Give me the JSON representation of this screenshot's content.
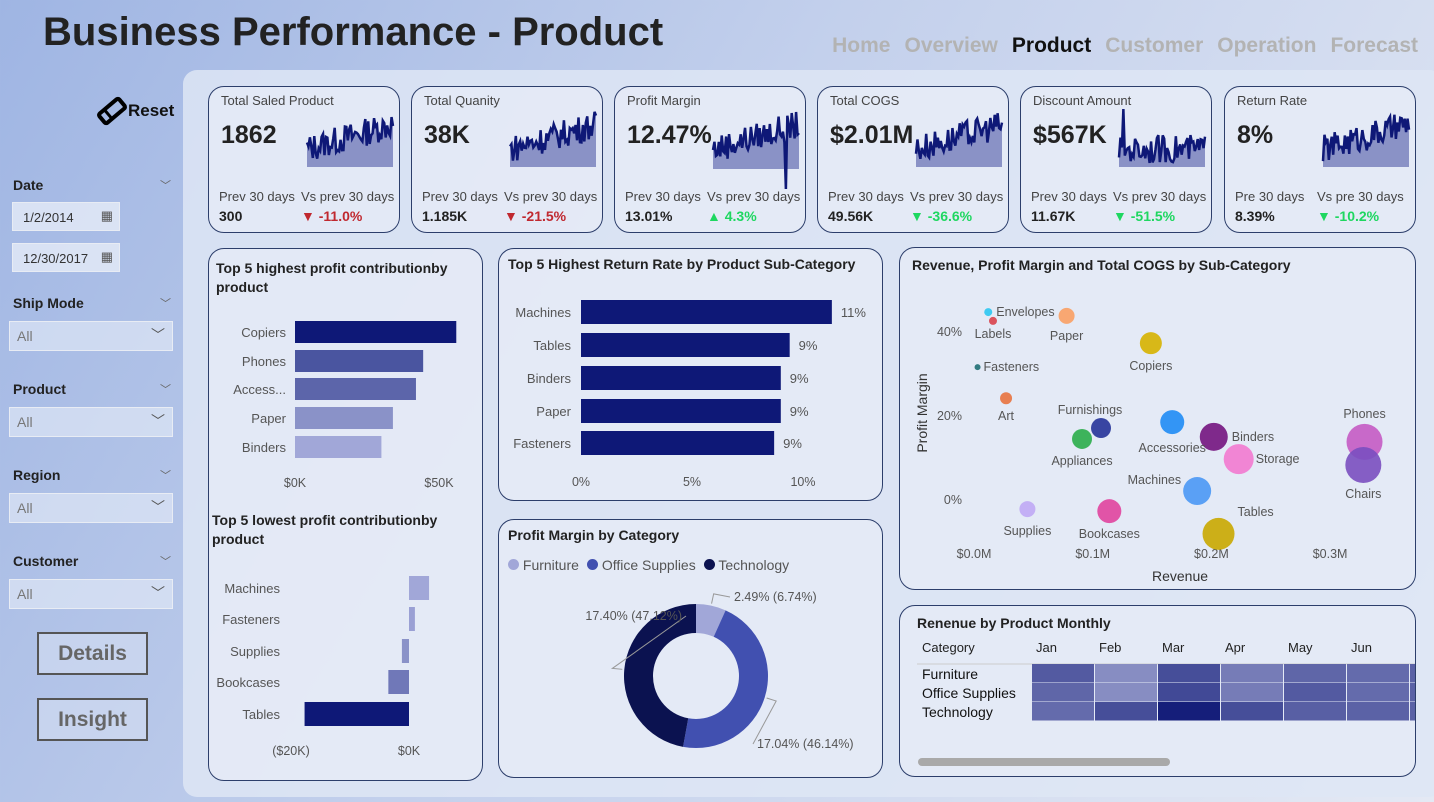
{
  "title": "Business Performance - Product",
  "nav": [
    {
      "label": "Home",
      "active": false
    },
    {
      "label": "Overview",
      "active": false
    },
    {
      "label": "Product",
      "active": true
    },
    {
      "label": "Customer",
      "active": false
    },
    {
      "label": "Operation",
      "active": false
    },
    {
      "label": "Forecast",
      "active": false
    }
  ],
  "sidebar": {
    "reset_label": "Reset",
    "date": {
      "label": "Date",
      "start": "1/2/2014",
      "end": "12/30/2017"
    },
    "filters": [
      {
        "label": "Ship Mode",
        "value": "All"
      },
      {
        "label": "Product",
        "value": "All"
      },
      {
        "label": "Region",
        "value": "All"
      },
      {
        "label": "Customer",
        "value": "All"
      }
    ],
    "details_label": "Details",
    "insight_label": "Insight"
  },
  "kpis": [
    {
      "title": "Total Saled Product",
      "value": "1862",
      "prev_label": "Prev 30 days",
      "vs_label": "Vs prev 30 days",
      "prev": "300",
      "delta": "-11.0%",
      "dir": "down",
      "color": "#c0282f"
    },
    {
      "title": "Total Quanity",
      "value": "38K",
      "prev_label": "Prev 30 days",
      "vs_label": "Vs prev 30 days",
      "prev": "1.185K",
      "delta": "-21.5%",
      "dir": "down",
      "color": "#c0282f"
    },
    {
      "title": "Profit Margin",
      "value": "12.47%",
      "prev_label": "Prev 30 days",
      "vs_label": "Vs prev 30 days",
      "prev": "13.01%",
      "delta": "4.3%",
      "dir": "up",
      "color": "#1ed760"
    },
    {
      "title": "Total COGS",
      "value": "$2.01M",
      "prev_label": "Prev 30 days",
      "vs_label": "Vs prev 30 days",
      "prev": "49.56K",
      "delta": "-36.6%",
      "dir": "down",
      "color": "#1ed760"
    },
    {
      "title": "Discount Amount",
      "value": "$567K",
      "prev_label": "Prev 30 days",
      "vs_label": "Vs prev 30 days",
      "prev": "11.67K",
      "delta": "-51.5%",
      "dir": "down",
      "color": "#1ed760"
    },
    {
      "title": "Return Rate",
      "value": "8%",
      "prev_label": "Pre 30 days",
      "vs_label": "Vs pre 30 days",
      "prev": "8.39%",
      "delta": "-10.2%",
      "dir": "down",
      "color": "#1ed760"
    }
  ],
  "chart_data": [
    {
      "type": "bar",
      "orientation": "horizontal",
      "title": "Top 5 highest profit contributionby product",
      "categories": [
        "Copiers",
        "Phones",
        "Access...",
        "Paper",
        "Binders"
      ],
      "values": [
        56000,
        44500,
        42000,
        34000,
        30000
      ],
      "xticks": [
        "$0K",
        "$50K"
      ],
      "colors": [
        "#0e1877",
        "#4a55a0",
        "#5c65aa",
        "#8a92c8",
        "#a1a7d8"
      ]
    },
    {
      "type": "bar",
      "orientation": "horizontal",
      "title": "Top 5 lowest profit contributionby product",
      "categories": [
        "Machines",
        "Fasteners",
        "Supplies",
        "Bookcases",
        "Tables"
      ],
      "values": [
        3400,
        1000,
        -1200,
        -3500,
        -17700
      ],
      "xticks": [
        "($20K)",
        "$0K"
      ],
      "colors": [
        "#a1a7d8",
        "#9aa0d4",
        "#8a92c8",
        "#7078b8",
        "#0e1877"
      ]
    },
    {
      "type": "bar",
      "orientation": "horizontal",
      "title": "Top 5 Highest Return Rate by Product Sub-Category",
      "categories": [
        "Machines",
        "Tables",
        "Binders",
        "Paper",
        "Fasteners"
      ],
      "values": [
        11.3,
        9.4,
        9.0,
        9.0,
        8.7
      ],
      "data_labels": [
        "11%",
        "9%",
        "9%",
        "9%",
        "9%"
      ],
      "xticks": [
        "0%",
        "5%",
        "10%"
      ],
      "color": "#0e1877"
    },
    {
      "type": "pie",
      "donut": true,
      "title": "Profit Margin by Category",
      "legend": "top",
      "slices": [
        {
          "name": "Furniture",
          "value": 6.74,
          "label": "2.49% (6.74%)",
          "color": "#a1a7d8"
        },
        {
          "name": "Office Supplies",
          "value": 46.14,
          "label": "17.04% (46.14%)",
          "color": "#4150b0"
        },
        {
          "name": "Technology",
          "value": 47.12,
          "label": "17.40% (47.12%)",
          "color": "#0b1250"
        }
      ]
    },
    {
      "type": "scatter",
      "bubble": true,
      "title": "Revenue, Profit Margin and Total COGS by Sub-Category",
      "xlabel": "Revenue",
      "ylabel": "Profit Margin",
      "xticks": [
        "$0.0M",
        "$0.1M",
        "$0.2M",
        "$0.3M"
      ],
      "yticks": [
        "0%",
        "20%",
        "40%"
      ],
      "xlim": [
        0,
        0.34
      ],
      "ylim": [
        -10,
        48
      ],
      "points": [
        {
          "name": "Envelopes",
          "x": 0.012,
          "y": 44.5,
          "size": 4,
          "color": "#2bc6f2"
        },
        {
          "name": "Labels",
          "x": 0.016,
          "y": 42.4,
          "size": 4,
          "color": "#d9434d"
        },
        {
          "name": "Paper",
          "x": 0.078,
          "y": 43.6,
          "size": 8,
          "color": "#f9a064"
        },
        {
          "name": "Copiers",
          "x": 0.149,
          "y": 37.1,
          "size": 11,
          "color": "#d6b300"
        },
        {
          "name": "Fasteners",
          "x": 0.003,
          "y": 31.4,
          "size": 3,
          "color": "#1e6f74"
        },
        {
          "name": "Art",
          "x": 0.027,
          "y": 24.0,
          "size": 6,
          "color": "#e8733f"
        },
        {
          "name": "Accessories",
          "x": 0.167,
          "y": 18.3,
          "size": 12,
          "color": "#1f8cf5"
        },
        {
          "name": "Furnishings",
          "x": 0.107,
          "y": 16.9,
          "size": 10,
          "color": "#253399"
        },
        {
          "name": "Appliances",
          "x": 0.091,
          "y": 14.3,
          "size": 10,
          "color": "#2aad4a"
        },
        {
          "name": "Binders",
          "x": 0.202,
          "y": 14.8,
          "size": 14,
          "color": "#731480"
        },
        {
          "name": "Storage",
          "x": 0.223,
          "y": 9.5,
          "size": 15,
          "color": "#f27ad0"
        },
        {
          "name": "Machines",
          "x": 0.188,
          "y": 1.9,
          "size": 14,
          "color": "#4a98f5"
        },
        {
          "name": "Tables",
          "x": 0.206,
          "y": -8.3,
          "size": 16,
          "color": "#c9a800"
        },
        {
          "name": "Phones",
          "x": 0.329,
          "y": 13.6,
          "size": 18,
          "color": "#c45bc4"
        },
        {
          "name": "Chairs",
          "x": 0.328,
          "y": 8.1,
          "size": 18,
          "color": "#7a4fc0"
        },
        {
          "name": "Supplies",
          "x": 0.045,
          "y": -2.4,
          "size": 8,
          "color": "#bfa8f5"
        },
        {
          "name": "Bookcases",
          "x": 0.114,
          "y": -2.9,
          "size": 12,
          "color": "#e0449e"
        }
      ]
    },
    {
      "type": "heatmap",
      "title": "Renenue by Product Monthly",
      "row_header": "Category",
      "columns": [
        "Jan",
        "Feb",
        "Mar",
        "Apr",
        "May",
        "Jun"
      ],
      "rows": [
        "Furniture",
        "Office Supplies",
        "Technology"
      ],
      "intensity": [
        [
          0.65,
          0.35,
          0.72,
          0.45,
          0.58,
          0.55
        ],
        [
          0.58,
          0.35,
          0.75,
          0.45,
          0.65,
          0.55
        ],
        [
          0.55,
          0.72,
          1.0,
          0.72,
          0.62,
          0.6
        ]
      ]
    }
  ]
}
